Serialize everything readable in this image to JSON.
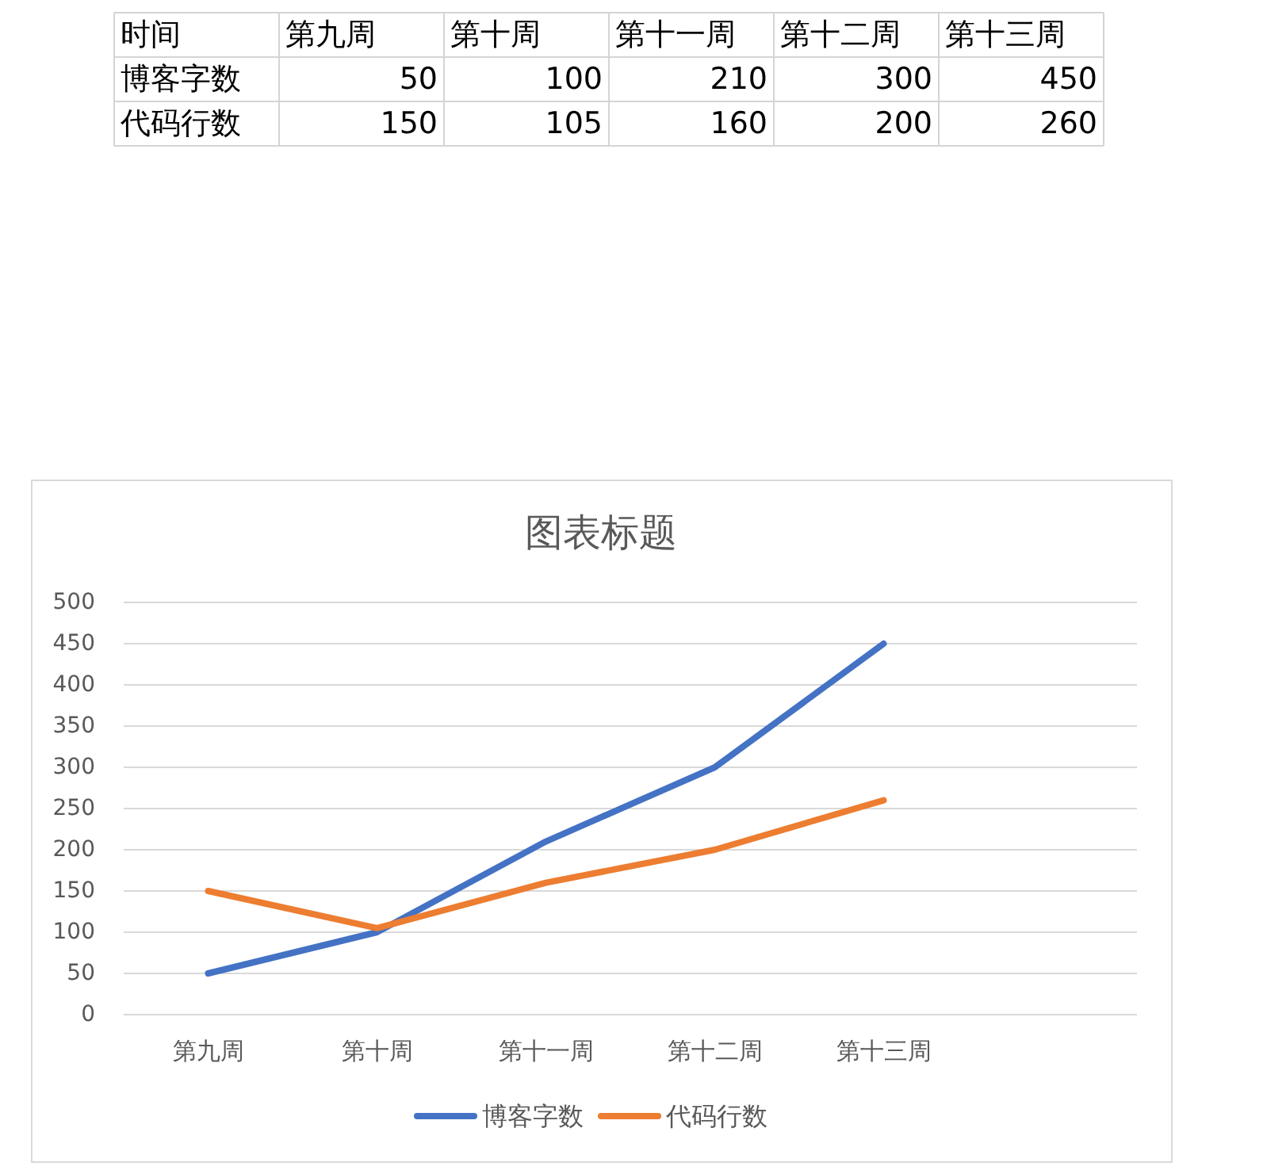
{
  "chart_data": [
    {
      "type": "other",
      "categories": [
        "第九周",
        "第十周",
        "第十一周",
        "第十二周",
        "第十三周"
      ],
      "series": [
        {
          "name": "博客字数",
          "values": [
            50,
            100,
            210,
            300,
            450
          ]
        },
        {
          "name": "代码行数",
          "values": [
            150,
            105,
            160,
            200,
            260
          ]
        }
      ],
      "annotations": [
        "时间"
      ],
      "data_labels": true
    },
    {
      "type": "line",
      "title": "图表标题",
      "categories": [
        "第九周",
        "第十周",
        "第十一周",
        "第十二周",
        "第十三周",
        null
      ],
      "series": [
        {
          "name": "博客字数",
          "color": "#4472c4",
          "values": [
            50,
            100,
            210,
            300,
            450,
            null
          ]
        },
        {
          "name": "代码行数",
          "color": "#ed7d31",
          "values": [
            150,
            105,
            160,
            200,
            260,
            null
          ]
        }
      ],
      "ylim": [
        0,
        500
      ],
      "yticks": [
        0,
        50,
        100,
        150,
        200,
        250,
        300,
        350,
        400,
        450,
        500
      ],
      "grid": "y",
      "legend": "bottom",
      "marker": "none",
      "line_style": "solid"
    }
  ]
}
